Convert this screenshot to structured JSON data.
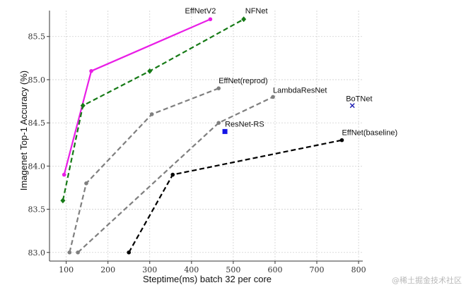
{
  "chart_data": {
    "type": "line",
    "xlabel": "Steptime(ms) batch 32 per core",
    "ylabel": "Imagenet Top-1 Accuracy (%)",
    "xlim": [
      60,
      810
    ],
    "ylim": [
      82.9,
      85.8
    ],
    "xticks": [
      "100",
      "200",
      "300",
      "400",
      "500",
      "600",
      "700",
      "800"
    ],
    "yticks": [
      "83.0",
      "83.5",
      "84.0",
      "84.5",
      "85.0",
      "85.5"
    ],
    "grid": true,
    "series": [
      {
        "name": "EffNetV2",
        "color": "#e91ee6",
        "dash": "solid",
        "marker": "circle",
        "x": [
          95,
          160,
          445
        ],
        "y": [
          83.9,
          85.1,
          85.7
        ]
      },
      {
        "name": "NFNet",
        "color": "#167a16",
        "dash": "dashed",
        "marker": "diamond",
        "x": [
          92,
          140,
          300,
          525
        ],
        "y": [
          83.6,
          84.7,
          85.1,
          85.7
        ]
      },
      {
        "name": "EffNet(reprod)",
        "color": "#7f7f7f",
        "dash": "dashed",
        "marker": "circle",
        "x": [
          108,
          148,
          305,
          465
        ],
        "y": [
          83.0,
          83.8,
          84.6,
          84.9
        ]
      },
      {
        "name": "LambdaResNet",
        "color": "#7f7f7f",
        "dash": "dashed",
        "marker": "circle",
        "x": [
          128,
          465,
          595
        ],
        "y": [
          83.0,
          84.5,
          84.8
        ]
      },
      {
        "name": "EffNet(baseline)",
        "color": "#000000",
        "dash": "dashed",
        "marker": "circle",
        "x": [
          250,
          355,
          760
        ],
        "y": [
          83.0,
          83.9,
          84.3
        ]
      },
      {
        "name": "ResNet-RS",
        "color": "#1414e6",
        "dash": "none",
        "marker": "square",
        "x": [
          480
        ],
        "y": [
          84.4
        ]
      },
      {
        "name": "BoTNet",
        "color": "#1a1ab0",
        "dash": "none",
        "marker": "x",
        "x": [
          785
        ],
        "y": [
          84.7
        ]
      }
    ]
  },
  "watermark": "@稀土掘金技术社区"
}
